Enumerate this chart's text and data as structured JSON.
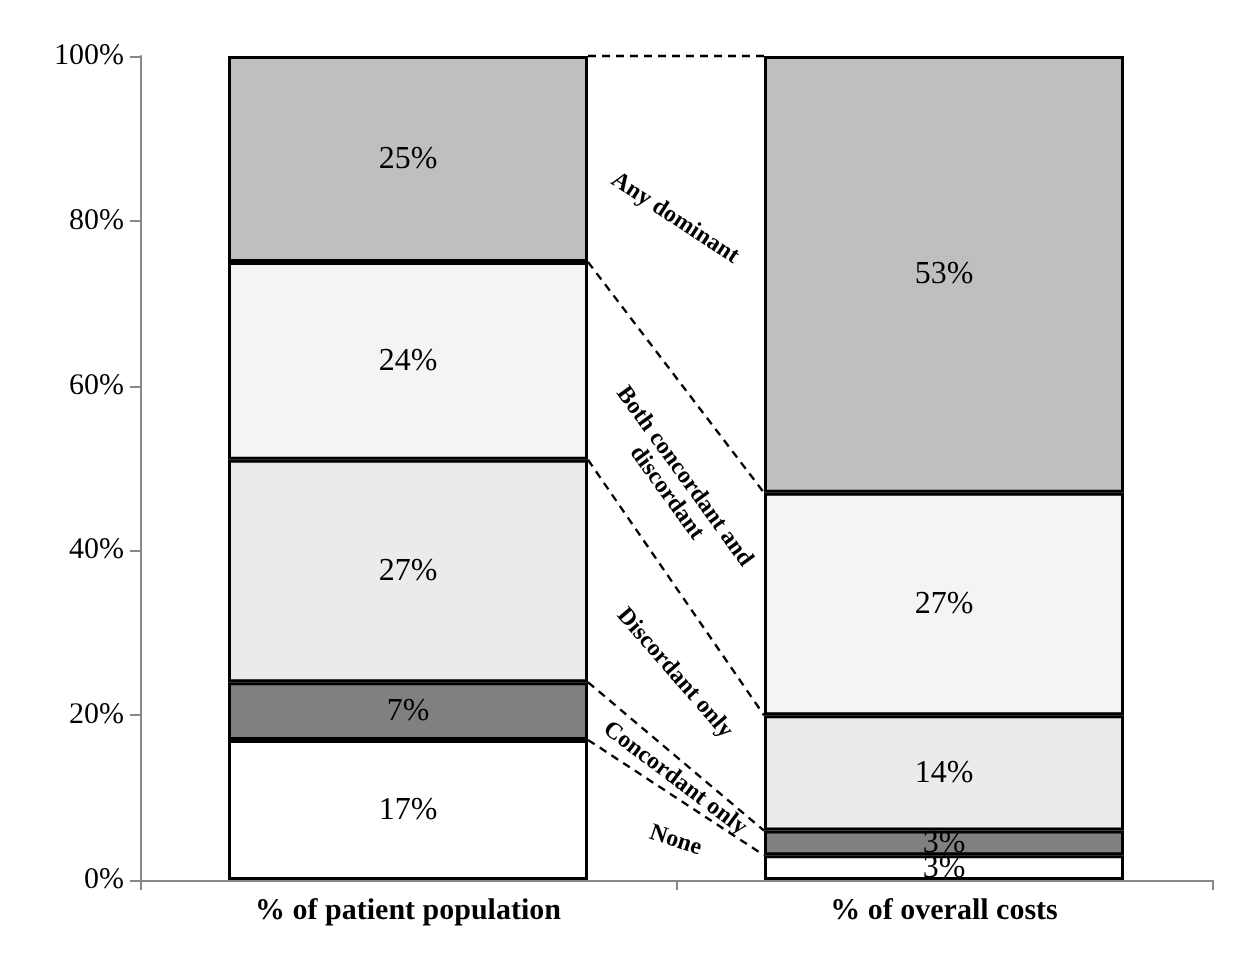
{
  "chart_data": {
    "type": "bar",
    "stacked": true,
    "categories": [
      "% of patient population",
      "% of overall costs"
    ],
    "series": [
      {
        "name": "None",
        "color": "#ffffff",
        "values": [
          17,
          3
        ],
        "value_labels": [
          "17%",
          "3%"
        ]
      },
      {
        "name": "Concordant only",
        "color": "#808080",
        "values": [
          7,
          3
        ],
        "value_labels": [
          "7%",
          "3%"
        ]
      },
      {
        "name": "Discordant only",
        "color": "#ebebeb",
        "values": [
          27,
          14
        ],
        "value_labels": [
          "27%",
          "14%"
        ]
      },
      {
        "name": "Both concordant and discordant",
        "color": "#f4f4f4",
        "values": [
          24,
          27
        ],
        "value_labels": [
          "24%",
          "27%"
        ]
      },
      {
        "name": "Any dominant",
        "color": "#bfbfbf",
        "values": [
          25,
          53
        ],
        "value_labels": [
          "25%",
          "53%"
        ]
      }
    ],
    "ylim": [
      0,
      100
    ],
    "yticks": [
      {
        "value": 0,
        "label": "0%"
      },
      {
        "value": 20,
        "label": "20%"
      },
      {
        "value": 40,
        "label": "40%"
      },
      {
        "value": 60,
        "label": "60%"
      },
      {
        "value": 80,
        "label": "80%"
      },
      {
        "value": 100,
        "label": "100%"
      }
    ],
    "grid": false,
    "legend": false
  }
}
